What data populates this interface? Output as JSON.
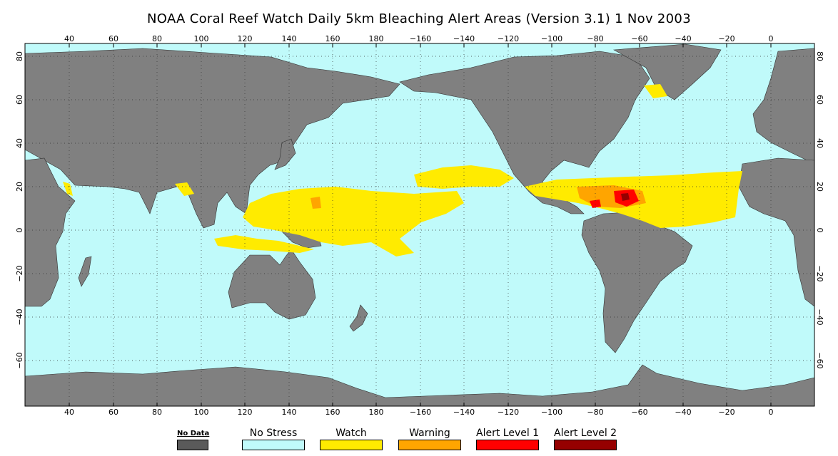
{
  "title": "NOAA Coral Reef Watch Daily 5km Bleaching Alert Areas (Version 3.1)  1 Nov 2003",
  "map": {
    "ocean_color": "#c0fafa",
    "land_color": "#808080",
    "longitude_ticks": [
      "40",
      "60",
      "80",
      "100",
      "120",
      "140",
      "160",
      "180",
      "−160",
      "−140",
      "−120",
      "−100",
      "−80",
      "−60",
      "−40",
      "−20",
      "0"
    ],
    "latitude_ticks": [
      "80",
      "60",
      "40",
      "20",
      "0",
      "−20",
      "−40",
      "−60"
    ]
  },
  "legend": [
    {
      "label": "No Data",
      "color": "#5a5a5a"
    },
    {
      "label": "No Stress",
      "color": "#c0fafa"
    },
    {
      "label": "Watch",
      "color": "#ffeb00"
    },
    {
      "label": "Warning",
      "color": "#ffa500"
    },
    {
      "label": "Alert Level 1",
      "color": "#ff0000"
    },
    {
      "label": "Alert Level 2",
      "color": "#960000"
    }
  ]
}
